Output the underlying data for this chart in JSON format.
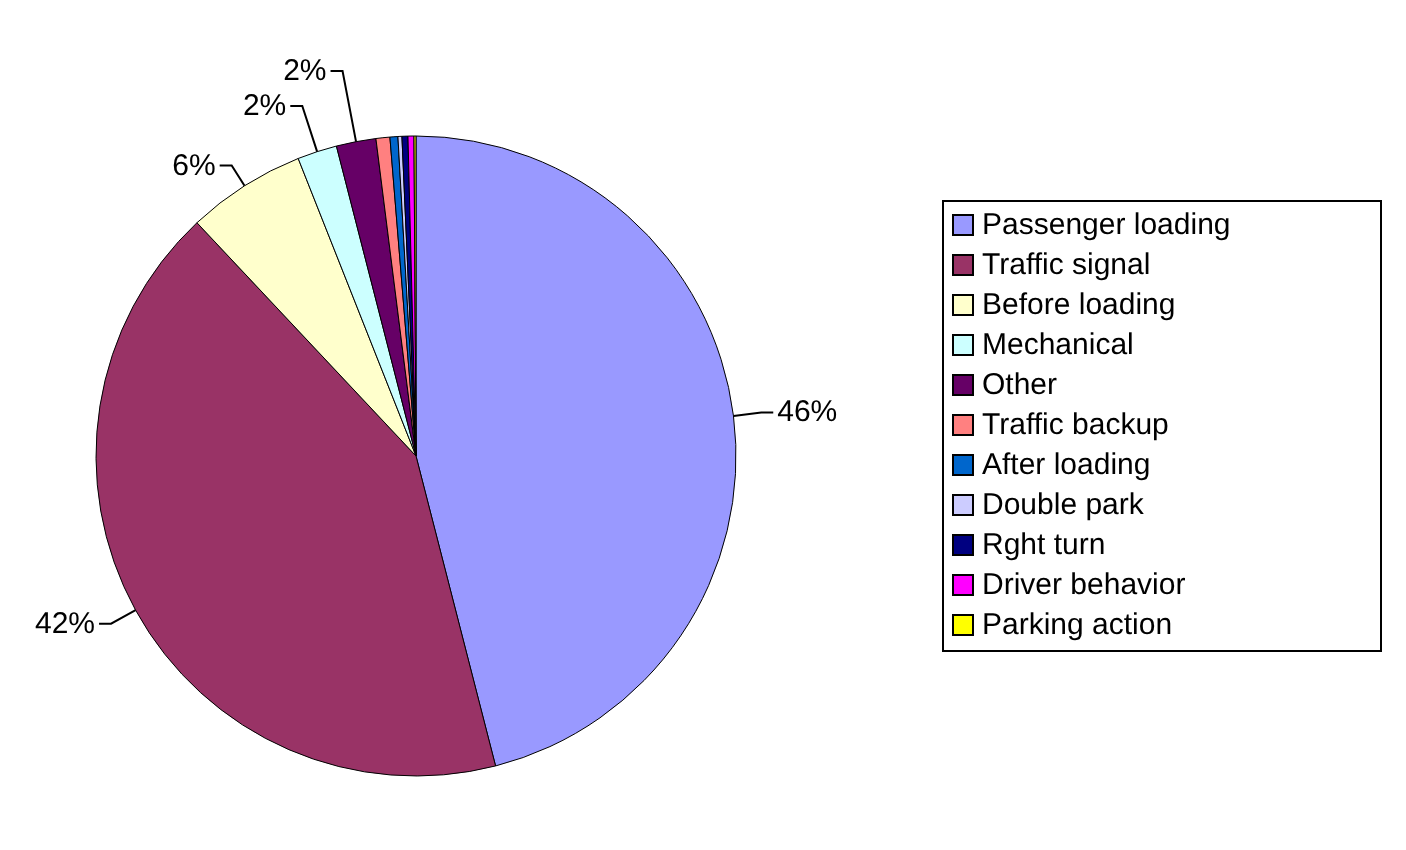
{
  "chart_data": {
    "type": "pie",
    "categories": [
      "Passenger loading",
      "Traffic signal",
      "Before loading",
      "Mechanical",
      "Other",
      "Traffic backup",
      "After loading",
      "Double park",
      "Rght turn",
      "Driver behavior",
      "Parking action"
    ],
    "values": [
      46,
      42,
      6,
      2,
      2,
      0.7,
      0.4,
      0.2,
      0.3,
      0.3,
      0.1
    ],
    "colors": [
      "#9999ff",
      "#993366",
      "#ffffcc",
      "#ccffff",
      "#660066",
      "#ff8080",
      "#0066cc",
      "#ccccff",
      "#000080",
      "#ff00ff",
      "#ffff00"
    ],
    "value_labels": [
      "46%",
      "42%",
      "6%",
      "2%",
      "2%",
      null,
      null,
      null,
      null,
      null,
      null
    ],
    "legend": "right"
  }
}
